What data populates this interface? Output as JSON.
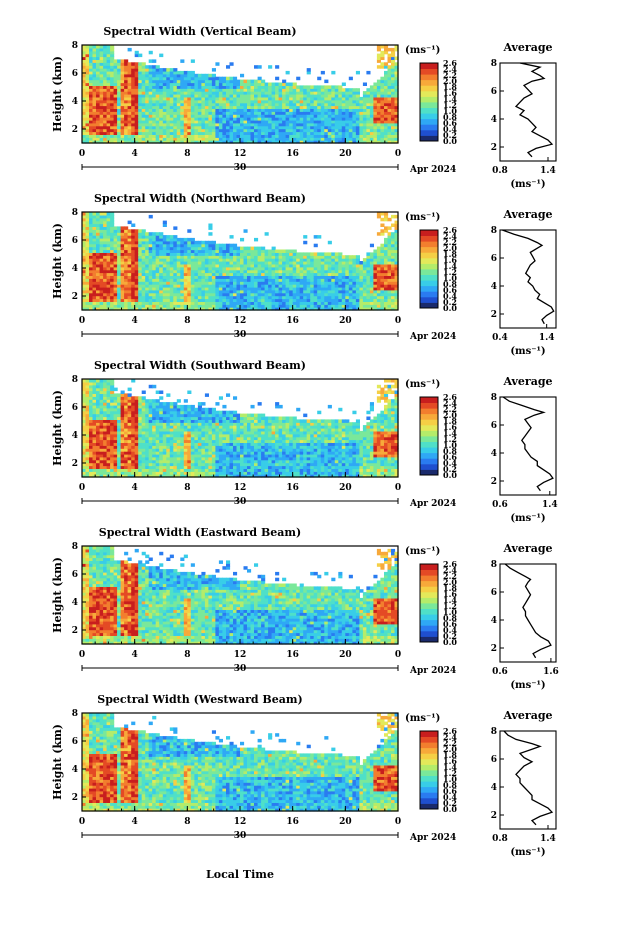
{
  "figure": {
    "xlabel": "Local Time"
  },
  "colorbar": {
    "unit": "(ms⁻¹)",
    "ticks": [
      "2.6",
      "2.4",
      "2.2",
      "2.0",
      "1.8",
      "1.6",
      "1.4",
      "1.2",
      "1.0",
      "0.8",
      "0.6",
      "0.4",
      "0.2",
      "0.0"
    ],
    "colors": [
      "#1a2a6c",
      "#1f4fcf",
      "#2a7bf0",
      "#2fa8f5",
      "#38cde8",
      "#4fe0c8",
      "#7ae89a",
      "#b4ec6a",
      "#e3e95a",
      "#f5cf45",
      "#f7a93a",
      "#f27e2e",
      "#e44a25",
      "#c81e1e"
    ]
  },
  "chart_data": [
    {
      "type": "heatmap",
      "title": "Spectral Width (Vertical Beam)",
      "ylabel": "Height (km)",
      "ylim": [
        1,
        8
      ],
      "yticks": [
        "8",
        "6",
        "4",
        "2"
      ],
      "xticks": [
        "0",
        "4",
        "8",
        "12",
        "16",
        "20",
        "0"
      ],
      "date_label": "30",
      "month_label": "Apr 2024",
      "profile": {
        "title": "Average",
        "xlabel": "(ms⁻¹)",
        "xticks": [
          "0.8",
          "1.4"
        ],
        "xlim": [
          0.8,
          1.5
        ],
        "yticks": [
          "8",
          "6",
          "4",
          "2"
        ],
        "x": [
          1.2,
          1.15,
          1.25,
          1.45,
          1.4,
          1.3,
          1.2,
          1.25,
          1.2,
          1.15,
          1.05,
          1.1,
          1.0,
          1.05,
          1.1,
          1.2,
          1.15,
          1.1,
          1.2,
          1.35,
          1.3,
          1.2,
          1.3,
          1.05
        ],
        "y": [
          1.3,
          1.6,
          1.9,
          2.2,
          2.5,
          2.8,
          3.1,
          3.4,
          3.7,
          4.0,
          4.3,
          4.6,
          4.9,
          5.2,
          5.5,
          5.8,
          6.1,
          6.4,
          6.7,
          6.9,
          7.1,
          7.4,
          7.7,
          8.0
        ]
      }
    },
    {
      "type": "heatmap",
      "title": "Spectral Width (Northward Beam)",
      "ylabel": "Height (km)",
      "ylim": [
        1,
        8
      ],
      "yticks": [
        "8",
        "6",
        "4",
        "2"
      ],
      "xticks": [
        "0",
        "4",
        "8",
        "12",
        "16",
        "20",
        "0"
      ],
      "date_label": "30",
      "month_label": "Apr 2024",
      "profile": {
        "title": "Average",
        "xlabel": "(ms⁻¹)",
        "xticks": [
          "0.4",
          "1.4"
        ],
        "xlim": [
          0.4,
          1.6
        ],
        "yticks": [
          "8",
          "6",
          "4",
          "2"
        ],
        "x": [
          1.35,
          1.3,
          1.4,
          1.55,
          1.5,
          1.35,
          1.2,
          1.25,
          1.15,
          1.1,
          1.0,
          1.05,
          0.95,
          1.0,
          1.05,
          1.15,
          1.1,
          1.05,
          1.2,
          1.3,
          1.2,
          1.0,
          0.7,
          0.45
        ],
        "y": [
          1.3,
          1.6,
          1.9,
          2.2,
          2.5,
          2.8,
          3.1,
          3.4,
          3.7,
          4.0,
          4.3,
          4.6,
          4.9,
          5.2,
          5.5,
          5.8,
          6.1,
          6.4,
          6.7,
          6.9,
          7.1,
          7.4,
          7.7,
          8.0
        ]
      }
    },
    {
      "type": "heatmap",
      "title": "Spectral Width (Southward Beam)",
      "ylabel": "Height (km)",
      "ylim": [
        1,
        8
      ],
      "yticks": [
        "8",
        "6",
        "4",
        "2"
      ],
      "xticks": [
        "0",
        "4",
        "8",
        "12",
        "16",
        "20",
        "0"
      ],
      "date_label": "30",
      "month_label": "Apr 2024",
      "profile": {
        "title": "Average",
        "xlabel": "(ms⁻¹)",
        "xticks": [
          "0.6",
          "1.4"
        ],
        "xlim": [
          0.6,
          1.5
        ],
        "yticks": [
          "8",
          "6",
          "4",
          "2"
        ],
        "x": [
          1.25,
          1.2,
          1.3,
          1.45,
          1.4,
          1.3,
          1.2,
          1.2,
          1.1,
          1.05,
          1.0,
          1.0,
          0.95,
          1.0,
          1.05,
          1.1,
          1.05,
          1.0,
          1.15,
          1.3,
          1.15,
          0.95,
          0.75,
          0.65
        ],
        "y": [
          1.3,
          1.6,
          1.9,
          2.2,
          2.5,
          2.8,
          3.1,
          3.4,
          3.7,
          4.0,
          4.3,
          4.6,
          4.9,
          5.2,
          5.5,
          5.8,
          6.1,
          6.4,
          6.7,
          6.9,
          7.1,
          7.4,
          7.7,
          8.0
        ]
      }
    },
    {
      "type": "heatmap",
      "title": "Spectral Width (Eastward Beam)",
      "ylabel": "Height (km)",
      "ylim": [
        1,
        8
      ],
      "yticks": [
        "8",
        "6",
        "4",
        "2"
      ],
      "xticks": [
        "0",
        "4",
        "8",
        "12",
        "16",
        "20",
        "0"
      ],
      "date_label": "30",
      "month_label": "Apr 2024",
      "profile": {
        "title": "Average",
        "xlabel": "(ms⁻¹)",
        "xticks": [
          "0.6",
          "1.6"
        ],
        "xlim": [
          0.6,
          1.7
        ],
        "yticks": [
          "8",
          "6",
          "4",
          "2"
        ],
        "x": [
          1.3,
          1.25,
          1.4,
          1.6,
          1.55,
          1.4,
          1.3,
          1.25,
          1.2,
          1.15,
          1.1,
          1.1,
          1.05,
          1.1,
          1.15,
          1.2,
          1.15,
          1.1,
          1.15,
          1.2,
          1.1,
          0.95,
          0.8,
          0.7
        ],
        "y": [
          1.3,
          1.6,
          1.9,
          2.2,
          2.5,
          2.8,
          3.1,
          3.4,
          3.7,
          4.0,
          4.3,
          4.6,
          4.9,
          5.2,
          5.5,
          5.8,
          6.1,
          6.4,
          6.7,
          6.9,
          7.1,
          7.4,
          7.7,
          8.0
        ]
      }
    },
    {
      "type": "heatmap",
      "title": "Spectral Width (Westward Beam)",
      "ylabel": "Height (km)",
      "ylim": [
        1,
        8
      ],
      "yticks": [
        "8",
        "6",
        "4",
        "2"
      ],
      "xticks": [
        "0",
        "4",
        "8",
        "12",
        "16",
        "20",
        "0"
      ],
      "date_label": "30",
      "month_label": "Apr 2024",
      "profile": {
        "title": "Average",
        "xlabel": "(ms⁻¹)",
        "xticks": [
          "0.8",
          "1.4"
        ],
        "xlim": [
          0.8,
          1.5
        ],
        "yticks": [
          "8",
          "6",
          "4",
          "2"
        ],
        "x": [
          1.25,
          1.2,
          1.3,
          1.45,
          1.4,
          1.3,
          1.2,
          1.2,
          1.15,
          1.1,
          1.05,
          1.05,
          1.0,
          1.05,
          1.1,
          1.2,
          1.1,
          1.05,
          1.2,
          1.3,
          1.2,
          1.0,
          0.9,
          0.85
        ],
        "y": [
          1.3,
          1.6,
          1.9,
          2.2,
          2.5,
          2.8,
          3.1,
          3.4,
          3.7,
          4.0,
          4.3,
          4.6,
          4.9,
          5.2,
          5.5,
          5.8,
          6.1,
          6.4,
          6.7,
          6.9,
          7.1,
          7.4,
          7.7,
          8.0
        ]
      }
    }
  ]
}
